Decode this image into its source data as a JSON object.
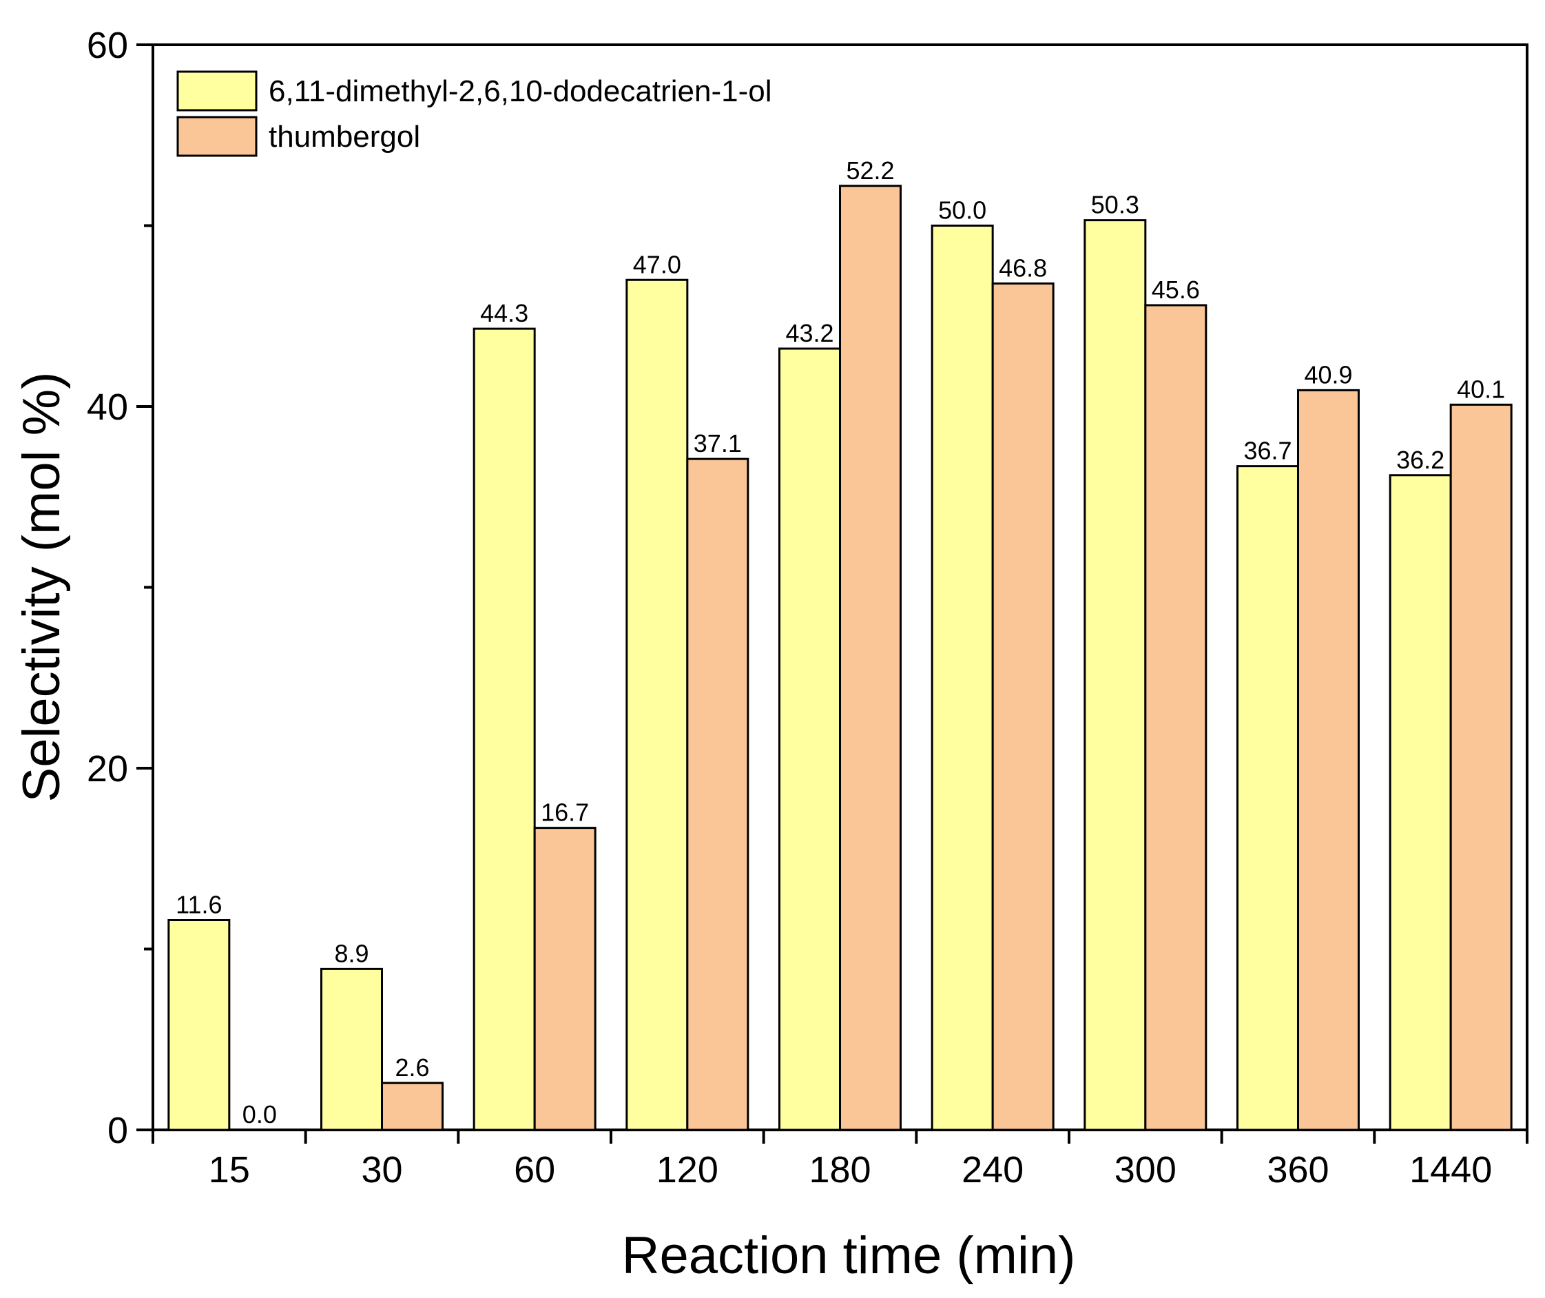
{
  "chart_data": {
    "type": "bar",
    "title": "",
    "xlabel": "Reaction time (min)",
    "ylabel": "Selectivity (mol %)",
    "categories": [
      "15",
      "30",
      "60",
      "120",
      "180",
      "240",
      "300",
      "360",
      "1440"
    ],
    "series": [
      {
        "name": "6,11-dimethyl-2,6,10-dodecatrien-1-ol",
        "color": "#FFFFA0",
        "values": [
          11.6,
          8.9,
          44.3,
          47.0,
          43.2,
          50.0,
          50.3,
          36.7,
          36.2
        ],
        "labels": [
          "11.6",
          "8.9",
          "44.3",
          "47.0",
          "43.2",
          "50.0",
          "50.3",
          "36.7",
          "36.2"
        ]
      },
      {
        "name": "thumbergol",
        "color": "#FAC597",
        "values": [
          0.0,
          2.6,
          16.7,
          37.1,
          52.2,
          46.8,
          45.6,
          40.9,
          40.1
        ],
        "labels": [
          "0.0",
          "2.6",
          "16.7",
          "37.1",
          "52.2",
          "46.8",
          "45.6",
          "40.9",
          "40.1"
        ]
      }
    ],
    "ylim": [
      0,
      60
    ],
    "yticks": [
      0,
      20,
      40,
      60
    ],
    "yticks_minor": [
      10,
      30,
      50
    ],
    "grid": false,
    "legend_position": "top-left"
  }
}
